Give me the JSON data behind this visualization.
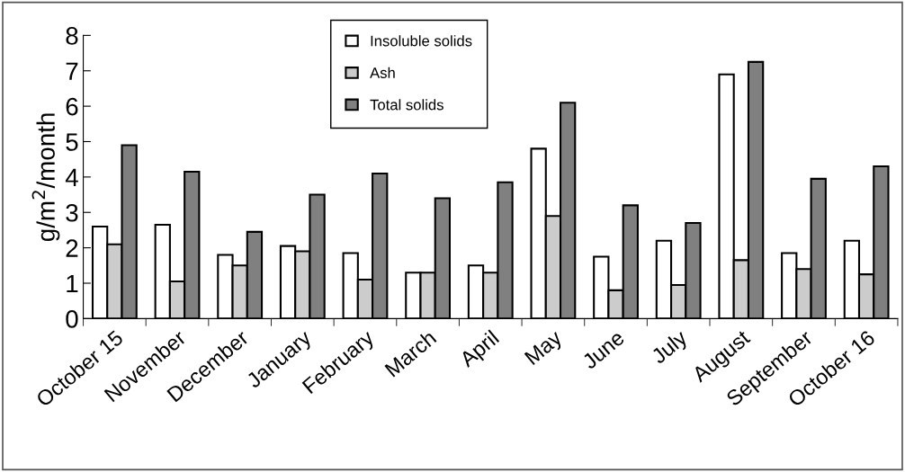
{
  "chart_data": {
    "type": "bar",
    "ylabel": "g/m$^{2}$/month",
    "categories": [
      "October 15",
      "November",
      "December",
      "January",
      "February",
      "March",
      "April",
      "May",
      "June",
      "July",
      "August",
      "September",
      "October 16"
    ],
    "series": [
      {
        "name": "Insoluble solids",
        "color": "#ffffff",
        "values": [
          2.6,
          2.65,
          1.8,
          2.05,
          1.85,
          1.3,
          1.5,
          4.8,
          1.75,
          2.2,
          6.9,
          1.85,
          2.2
        ]
      },
      {
        "name": "Ash",
        "color": "#cccccc",
        "values": [
          2.1,
          1.05,
          1.5,
          1.9,
          1.1,
          1.3,
          1.3,
          2.9,
          0.8,
          0.95,
          1.65,
          1.4,
          1.25
        ]
      },
      {
        "name": "Total solids",
        "color": "#808080",
        "values": [
          4.9,
          4.15,
          2.45,
          3.5,
          4.1,
          3.4,
          3.85,
          6.1,
          3.2,
          2.7,
          7.25,
          3.95,
          4.3
        ]
      }
    ],
    "ylim": [
      0,
      8
    ],
    "yticks": [
      0,
      1,
      2,
      3,
      4,
      5,
      6,
      7,
      8
    ],
    "grid": false,
    "legend": "top"
  }
}
